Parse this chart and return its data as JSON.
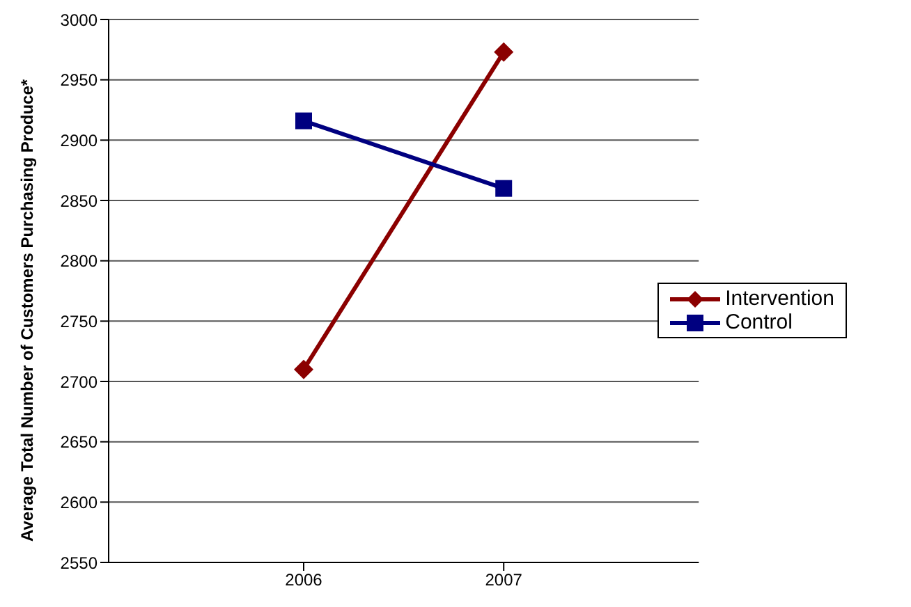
{
  "chart_data": {
    "type": "line",
    "ylabel": "Average Total Number of Customers Purchasing Produce*",
    "categories": [
      "2006",
      "2007"
    ],
    "series": [
      {
        "name": "Intervention",
        "color": "#8b0000",
        "values": [
          2710,
          2973
        ],
        "marker": "diamond"
      },
      {
        "name": "Control",
        "color": "#000080",
        "values": [
          2916,
          2860
        ],
        "marker": "square"
      }
    ],
    "ylim": [
      2550,
      3000
    ],
    "yticks": [
      2550,
      2600,
      2650,
      2700,
      2750,
      2800,
      2850,
      2900,
      2950,
      3000
    ],
    "grid": "y",
    "legend": "right"
  }
}
